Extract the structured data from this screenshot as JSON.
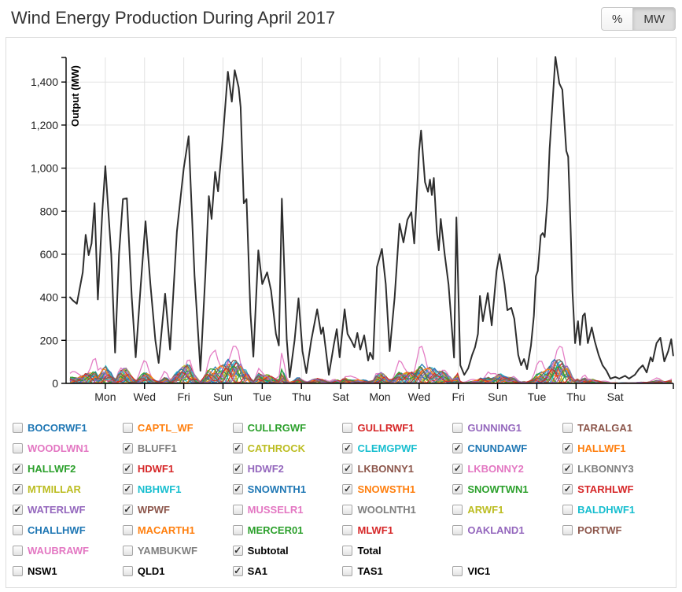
{
  "header": {
    "title": "Wind Energy Production During April 2017",
    "unit_toggle": {
      "options": [
        {
          "label": "%",
          "active": false
        },
        {
          "label": "MW",
          "active": true
        }
      ]
    }
  },
  "chart_data": {
    "type": "line",
    "title": "Wind Energy Production During April 2017",
    "xlabel": "",
    "ylabel": "Output (MW)",
    "x_unit": "day of April 2017 (1 = Apr 1 00:00)",
    "xlim_days": [
      1,
      31.96
    ],
    "ylim": [
      0,
      1540
    ],
    "grid": true,
    "legend_position": "bottom-checkbox-grid",
    "y_ticks": [
      {
        "value": 0,
        "label": "0"
      },
      {
        "value": 200,
        "label": "200"
      },
      {
        "value": 400,
        "label": "400"
      },
      {
        "value": 600,
        "label": "600"
      },
      {
        "value": 800,
        "label": "800"
      },
      {
        "value": 1000,
        "label": "1,000"
      },
      {
        "value": 1200,
        "label": "1,200"
      },
      {
        "value": 1400,
        "label": "1,400"
      }
    ],
    "x_ticks": [
      {
        "day": 3,
        "label": "Mon"
      },
      {
        "day": 5,
        "label": "Wed"
      },
      {
        "day": 7,
        "label": "Fri"
      },
      {
        "day": 9,
        "label": "Sun"
      },
      {
        "day": 11,
        "label": "Tue"
      },
      {
        "day": 13,
        "label": "Thu"
      },
      {
        "day": 15,
        "label": "Sat"
      },
      {
        "day": 17,
        "label": "Mon"
      },
      {
        "day": 19,
        "label": "Wed"
      },
      {
        "day": 21,
        "label": "Fri"
      },
      {
        "day": 23,
        "label": "Sun"
      },
      {
        "day": 25,
        "label": "Tue"
      },
      {
        "day": 27,
        "label": "Thu"
      },
      {
        "day": 29,
        "label": "Sat"
      }
    ],
    "series": [
      {
        "name": "Subtotal",
        "color": "#2e2e2e",
        "width": 2,
        "points": [
          [
            1.2,
            400
          ],
          [
            1.35,
            385
          ],
          [
            1.55,
            370
          ],
          [
            1.85,
            516
          ],
          [
            2.0,
            690
          ],
          [
            2.15,
            596
          ],
          [
            2.3,
            650
          ],
          [
            2.45,
            837
          ],
          [
            2.62,
            390
          ],
          [
            2.85,
            800
          ],
          [
            3.0,
            1009
          ],
          [
            3.3,
            600
          ],
          [
            3.5,
            143
          ],
          [
            3.7,
            600
          ],
          [
            3.9,
            856
          ],
          [
            4.1,
            860
          ],
          [
            4.35,
            400
          ],
          [
            4.55,
            121
          ],
          [
            4.8,
            450
          ],
          [
            5.05,
            753
          ],
          [
            5.3,
            461
          ],
          [
            5.55,
            200
          ],
          [
            5.72,
            95
          ],
          [
            6.05,
            417
          ],
          [
            6.3,
            157
          ],
          [
            6.65,
            706
          ],
          [
            7.0,
            1000
          ],
          [
            7.25,
            1148
          ],
          [
            7.55,
            500
          ],
          [
            7.85,
            59
          ],
          [
            8.1,
            500
          ],
          [
            8.28,
            870
          ],
          [
            8.42,
            764
          ],
          [
            8.6,
            983
          ],
          [
            8.75,
            892
          ],
          [
            9.0,
            1150
          ],
          [
            9.25,
            1448
          ],
          [
            9.45,
            1309
          ],
          [
            9.6,
            1455
          ],
          [
            9.8,
            1375
          ],
          [
            9.9,
            1283
          ],
          [
            10.06,
            837
          ],
          [
            10.2,
            856
          ],
          [
            10.4,
            325
          ],
          [
            10.55,
            124
          ],
          [
            10.8,
            618
          ],
          [
            11.0,
            461
          ],
          [
            11.25,
            516
          ],
          [
            11.45,
            431
          ],
          [
            11.7,
            230
          ],
          [
            11.85,
            176
          ],
          [
            12.0,
            858
          ],
          [
            12.25,
            205
          ],
          [
            12.4,
            29
          ],
          [
            12.65,
            200
          ],
          [
            12.85,
            395
          ],
          [
            13.05,
            150
          ],
          [
            13.25,
            48
          ],
          [
            13.5,
            200
          ],
          [
            13.8,
            344
          ],
          [
            14.0,
            230
          ],
          [
            14.1,
            260
          ],
          [
            14.4,
            40
          ],
          [
            14.65,
            180
          ],
          [
            14.8,
            252
          ],
          [
            14.95,
            121
          ],
          [
            15.2,
            344
          ],
          [
            15.35,
            230
          ],
          [
            15.55,
            197
          ],
          [
            15.7,
            168
          ],
          [
            15.85,
            234
          ],
          [
            16.0,
            157
          ],
          [
            16.2,
            223
          ],
          [
            16.4,
            106
          ],
          [
            16.5,
            143
          ],
          [
            16.65,
            113
          ],
          [
            16.85,
            541
          ],
          [
            17.1,
            625
          ],
          [
            17.3,
            461
          ],
          [
            17.5,
            150
          ],
          [
            17.75,
            400
          ],
          [
            18.0,
            742
          ],
          [
            18.2,
            655
          ],
          [
            18.4,
            760
          ],
          [
            18.6,
            795
          ],
          [
            18.75,
            650
          ],
          [
            19.0,
            1082
          ],
          [
            19.1,
            1175
          ],
          [
            19.3,
            935
          ],
          [
            19.45,
            890
          ],
          [
            19.55,
            947
          ],
          [
            19.65,
            875
          ],
          [
            19.75,
            954
          ],
          [
            19.9,
            706
          ],
          [
            20.0,
            618
          ],
          [
            20.1,
            764
          ],
          [
            20.3,
            600
          ],
          [
            20.5,
            460
          ],
          [
            20.65,
            278
          ],
          [
            20.78,
            120
          ],
          [
            20.9,
            771
          ],
          [
            21.1,
            84
          ],
          [
            21.3,
            40
          ],
          [
            21.5,
            70
          ],
          [
            21.7,
            132
          ],
          [
            21.85,
            168
          ],
          [
            22.0,
            230
          ],
          [
            22.1,
            406
          ],
          [
            22.25,
            289
          ],
          [
            22.5,
            420
          ],
          [
            22.7,
            270
          ],
          [
            22.95,
            523
          ],
          [
            23.1,
            600
          ],
          [
            23.35,
            461
          ],
          [
            23.5,
            340
          ],
          [
            23.7,
            351
          ],
          [
            23.85,
            300
          ],
          [
            24.05,
            132
          ],
          [
            24.2,
            84
          ],
          [
            24.35,
            113
          ],
          [
            24.5,
            66
          ],
          [
            24.7,
            176
          ],
          [
            24.85,
            314
          ],
          [
            24.95,
            497
          ],
          [
            25.05,
            523
          ],
          [
            25.2,
            687
          ],
          [
            25.3,
            698
          ],
          [
            25.4,
            680
          ],
          [
            25.55,
            863
          ],
          [
            25.65,
            1090
          ],
          [
            25.95,
            1517
          ],
          [
            26.15,
            1393
          ],
          [
            26.3,
            1364
          ],
          [
            26.4,
            1221
          ],
          [
            26.5,
            1080
          ],
          [
            26.6,
            1053
          ],
          [
            26.72,
            735
          ],
          [
            26.82,
            424
          ],
          [
            26.95,
            187
          ],
          [
            27.1,
            289
          ],
          [
            27.2,
            179
          ],
          [
            27.35,
            314
          ],
          [
            27.45,
            325
          ],
          [
            27.6,
            187
          ],
          [
            27.8,
            260
          ],
          [
            27.95,
            197
          ],
          [
            28.15,
            132
          ],
          [
            28.35,
            84
          ],
          [
            28.55,
            59
          ],
          [
            28.75,
            22
          ],
          [
            29.0,
            30
          ],
          [
            29.2,
            22
          ],
          [
            29.5,
            35
          ],
          [
            29.7,
            22
          ],
          [
            30.0,
            40
          ],
          [
            30.2,
            66
          ],
          [
            30.4,
            84
          ],
          [
            30.6,
            51
          ],
          [
            30.8,
            121
          ],
          [
            30.9,
            102
          ],
          [
            31.1,
            187
          ],
          [
            31.3,
            212
          ],
          [
            31.5,
            102
          ],
          [
            31.7,
            150
          ],
          [
            31.85,
            205
          ],
          [
            31.95,
            130
          ]
        ]
      }
    ],
    "farm_lines": {
      "note": "19 checked wind-farm series cluster between 0 and ~150 MW, roughly proportional to the Subtotal line; LKBONNY2 (pink) occasionally rises above the bundle to ~200 MW",
      "scale_of_subtotal": 0.052,
      "max_mw": 172,
      "highlight_farm": "LKBONNY2",
      "highlight_factor": 2.1
    }
  },
  "legend": {
    "rows": [
      [
        {
          "label": "BOCORWF1",
          "color": "#1f77b4",
          "checked": false,
          "type": "farm"
        },
        {
          "label": "CAPTL_WF",
          "color": "#ff7f0e",
          "checked": false,
          "type": "farm"
        },
        {
          "label": "CULLRGWF",
          "color": "#2ca02c",
          "checked": false,
          "type": "farm"
        },
        {
          "label": "GULLRWF1",
          "color": "#d62728",
          "checked": false,
          "type": "farm"
        },
        {
          "label": "GUNNING1",
          "color": "#9467bd",
          "checked": false,
          "type": "farm"
        },
        {
          "label": "TARALGA1",
          "color": "#8c564b",
          "checked": false,
          "type": "farm"
        }
      ],
      [
        {
          "label": "WOODLWN1",
          "color": "#e377c2",
          "checked": false,
          "type": "farm"
        },
        {
          "label": "BLUFF1",
          "color": "#7f7f7f",
          "checked": true,
          "type": "farm"
        },
        {
          "label": "CATHROCK",
          "color": "#bcbd22",
          "checked": true,
          "type": "farm"
        },
        {
          "label": "CLEMGPWF",
          "color": "#17becf",
          "checked": true,
          "type": "farm"
        },
        {
          "label": "CNUNDAWF",
          "color": "#1f77b4",
          "checked": true,
          "type": "farm"
        },
        {
          "label": "HALLWF1",
          "color": "#ff7f0e",
          "checked": true,
          "type": "farm"
        }
      ],
      [
        {
          "label": "HALLWF2",
          "color": "#2ca02c",
          "checked": true,
          "type": "farm"
        },
        {
          "label": "HDWF1",
          "color": "#d62728",
          "checked": true,
          "type": "farm"
        },
        {
          "label": "HDWF2",
          "color": "#9467bd",
          "checked": true,
          "type": "farm"
        },
        {
          "label": "LKBONNY1",
          "color": "#8c564b",
          "checked": true,
          "type": "farm"
        },
        {
          "label": "LKBONNY2",
          "color": "#e377c2",
          "checked": true,
          "type": "farm"
        },
        {
          "label": "LKBONNY3",
          "color": "#7f7f7f",
          "checked": true,
          "type": "farm"
        }
      ],
      [
        {
          "label": "MTMILLAR",
          "color": "#bcbd22",
          "checked": true,
          "type": "farm"
        },
        {
          "label": "NBHWF1",
          "color": "#17becf",
          "checked": true,
          "type": "farm"
        },
        {
          "label": "SNOWNTH1",
          "color": "#1f77b4",
          "checked": true,
          "type": "farm"
        },
        {
          "label": "SNOWSTH1",
          "color": "#ff7f0e",
          "checked": true,
          "type": "farm"
        },
        {
          "label": "SNOWTWN1",
          "color": "#2ca02c",
          "checked": true,
          "type": "farm"
        },
        {
          "label": "STARHLWF",
          "color": "#d62728",
          "checked": true,
          "type": "farm"
        }
      ],
      [
        {
          "label": "WATERLWF",
          "color": "#9467bd",
          "checked": true,
          "type": "farm"
        },
        {
          "label": "WPWF",
          "color": "#8c564b",
          "checked": true,
          "type": "farm"
        },
        {
          "label": "MUSSELR1",
          "color": "#e377c2",
          "checked": false,
          "type": "farm"
        },
        {
          "label": "WOOLNTH1",
          "color": "#7f7f7f",
          "checked": false,
          "type": "farm"
        },
        {
          "label": "ARWF1",
          "color": "#bcbd22",
          "checked": false,
          "type": "farm"
        },
        {
          "label": "BALDHWF1",
          "color": "#17becf",
          "checked": false,
          "type": "farm"
        }
      ],
      [
        {
          "label": "CHALLHWF",
          "color": "#1f77b4",
          "checked": false,
          "type": "farm"
        },
        {
          "label": "MACARTH1",
          "color": "#ff7f0e",
          "checked": false,
          "type": "farm"
        },
        {
          "label": "MERCER01",
          "color": "#2ca02c",
          "checked": false,
          "type": "farm"
        },
        {
          "label": "MLWF1",
          "color": "#d62728",
          "checked": false,
          "type": "farm"
        },
        {
          "label": "OAKLAND1",
          "color": "#9467bd",
          "checked": false,
          "type": "farm"
        },
        {
          "label": "PORTWF",
          "color": "#8c564b",
          "checked": false,
          "type": "farm"
        }
      ],
      [
        {
          "label": "WAUBRAWF",
          "color": "#e377c2",
          "checked": false,
          "type": "farm"
        },
        {
          "label": "YAMBUKWF",
          "color": "#7f7f7f",
          "checked": false,
          "type": "farm"
        },
        {
          "label": "Subtotal",
          "color": "#000000",
          "checked": true,
          "type": "total"
        },
        {
          "label": "Total",
          "color": "#000000",
          "checked": false,
          "type": "total"
        },
        null,
        null
      ],
      [
        {
          "label": "NSW1",
          "color": "#000000",
          "checked": false,
          "type": "region"
        },
        {
          "label": "QLD1",
          "color": "#000000",
          "checked": false,
          "type": "region"
        },
        {
          "label": "SA1",
          "color": "#000000",
          "checked": true,
          "type": "region"
        },
        {
          "label": "TAS1",
          "color": "#000000",
          "checked": false,
          "type": "region"
        },
        {
          "label": "VIC1",
          "color": "#000000",
          "checked": false,
          "type": "region"
        },
        null
      ]
    ]
  },
  "style": {
    "grid_color": "#e2e2e2",
    "axis_color": "#000000",
    "tick_label_color": "#222222",
    "panel_border": "#dcdcdc"
  }
}
